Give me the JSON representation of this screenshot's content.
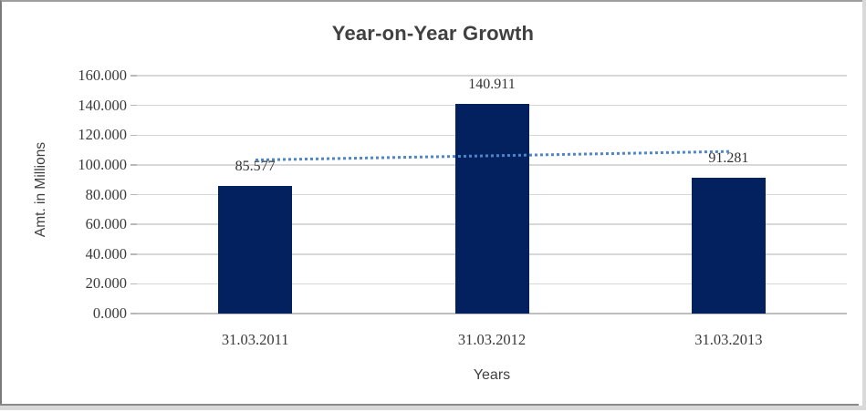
{
  "chart_data": {
    "type": "bar",
    "title": "Year-on-Year Growth",
    "xlabel": "Years",
    "ylabel": "Amt. in Millions",
    "categories": [
      "31.03.2011",
      "31.03.2012",
      "31.03.2013"
    ],
    "values": [
      85.577,
      140.911,
      91.281
    ],
    "data_labels": [
      "85.577",
      "140.911",
      "91.281"
    ],
    "ylim": [
      0,
      160
    ],
    "ytick_values": [
      0,
      20,
      40,
      60,
      80,
      100,
      120,
      140,
      160
    ],
    "ytick_labels": [
      "0.000",
      "20.000",
      "40.000",
      "60.000",
      "80.000",
      "100.000",
      "120.000",
      "140.000",
      "160.000"
    ],
    "grid": true,
    "legend": "none",
    "trendline": {
      "type": "linear",
      "style": "dotted",
      "color": "#4C86C8"
    },
    "colors": {
      "bar": "#02215E",
      "trendline": "#4C86C8",
      "gridline": "#D8D8D8",
      "axis_line": "#BFBFBF",
      "text": "#404040"
    }
  }
}
